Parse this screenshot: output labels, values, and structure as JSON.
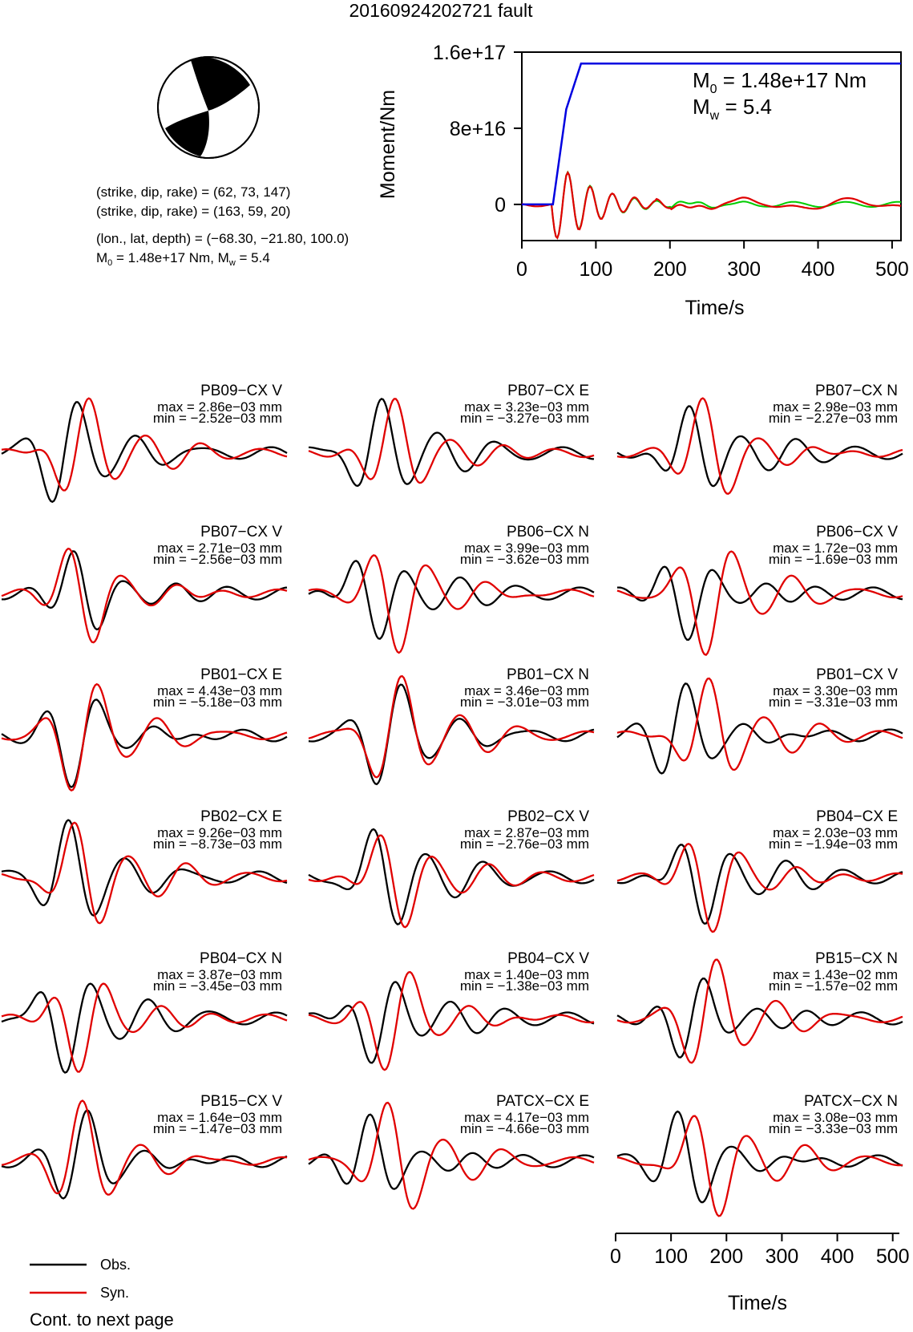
{
  "title": "20160924202721 fault",
  "info": {
    "nodal_plane_1": "(strike, dip, rake) = (62, 73, 147)",
    "nodal_plane_2": "(strike, dip, rake) = (163, 59, 20)",
    "location": "(lon., lat, depth) = (−68.30, −21.80, 100.0)",
    "m0_prefix": "M",
    "m0_sub": "0",
    "m0_text": " = 1.48e+17 Nm, M",
    "mw_sub": "w",
    "mw_text": " = 5.4"
  },
  "colors": {
    "observed": "#000000",
    "synthetic": "#e00000",
    "moment": "#0000e0",
    "stf": "#00cc00"
  },
  "legend": {
    "obs": "Obs.",
    "syn": "Syn."
  },
  "footer": "Cont. to next page",
  "chart_data": [
    {
      "type": "line",
      "ylabel": "Moment/Nm",
      "xlabel": "Time/s",
      "xlim": [
        0,
        512
      ],
      "ylim": [
        -3.8e+16,
        1.6e+17
      ],
      "xticks": [
        0,
        100,
        200,
        300,
        400,
        500
      ],
      "xtick_labels": [
        "0",
        "100",
        "200",
        "300",
        "400",
        "500"
      ],
      "yticks": [
        0,
        8e+16,
        1.6e+17
      ],
      "ytick_labels": [
        "0",
        "8e+16",
        "1.6e+17"
      ],
      "annotation_m0": {
        "main": "M",
        "sub": "0",
        "rest": " = 1.48e+17 Nm"
      },
      "annotation_mw": {
        "main": "M",
        "sub": "w",
        "rest": " = 5.4"
      },
      "cumulative_moment": {
        "x": [
          0,
          42,
          60,
          80,
          512
        ],
        "y": [
          0,
          0,
          1e+17,
          1.48e+17,
          1.48e+17
        ]
      },
      "source_time_function_curves": "green and red oscillating curves around 0"
    },
    {
      "type": "line",
      "xlabel": "Time/s",
      "xlim": [
        0,
        512
      ],
      "xticks": [
        0,
        100,
        200,
        300,
        400,
        500
      ],
      "xtick_labels": [
        "0",
        "100",
        "200",
        "300",
        "400",
        "500"
      ],
      "stations": [
        {
          "name": "PB09−CX V",
          "max": "max = 2.86e−03 mm",
          "min": "min = −2.52e−03 mm"
        },
        {
          "name": "PB07−CX E",
          "max": "max = 3.23e−03 mm",
          "min": "min = −3.27e−03 mm"
        },
        {
          "name": "PB07−CX N",
          "max": "max = 2.98e−03 mm",
          "min": "min = −2.27e−03 mm"
        },
        {
          "name": "PB07−CX V",
          "max": "max = 2.71e−03 mm",
          "min": "min = −2.56e−03 mm"
        },
        {
          "name": "PB06−CX N",
          "max": "max = 3.99e−03 mm",
          "min": "min = −3.62e−03 mm"
        },
        {
          "name": "PB06−CX V",
          "max": "max = 1.72e−03 mm",
          "min": "min = −1.69e−03 mm"
        },
        {
          "name": "PB01−CX E",
          "max": "max = 4.43e−03 mm",
          "min": "min = −5.18e−03 mm"
        },
        {
          "name": "PB01−CX N",
          "max": "max = 3.46e−03 mm",
          "min": "min = −3.01e−03 mm"
        },
        {
          "name": "PB01−CX V",
          "max": "max = 3.30e−03 mm",
          "min": "min = −3.31e−03 mm"
        },
        {
          "name": "PB02−CX E",
          "max": "max = 9.26e−03 mm",
          "min": "min = −8.73e−03 mm"
        },
        {
          "name": "PB02−CX V",
          "max": "max = 2.87e−03 mm",
          "min": "min = −2.76e−03 mm"
        },
        {
          "name": "PB04−CX E",
          "max": "max = 2.03e−03 mm",
          "min": "min = −1.94e−03 mm"
        },
        {
          "name": "PB04−CX N",
          "max": "max = 3.87e−03 mm",
          "min": "min = −3.45e−03 mm"
        },
        {
          "name": "PB04−CX V",
          "max": "max = 1.40e−03 mm",
          "min": "min = −1.38e−03 mm"
        },
        {
          "name": "PB15−CX N",
          "max": "max = 1.43e−02 mm",
          "min": "min = −1.57e−02 mm"
        },
        {
          "name": "PB15−CX V",
          "max": "max = 1.64e−03 mm",
          "min": "min = −1.47e−03 mm"
        },
        {
          "name": "PATCX−CX E",
          "max": "max = 4.17e−03 mm",
          "min": "min = −4.66e−03 mm"
        },
        {
          "name": "PATCX−CX N",
          "max": "max = 3.08e−03 mm",
          "min": "min = −3.33e−03 mm"
        }
      ]
    }
  ]
}
